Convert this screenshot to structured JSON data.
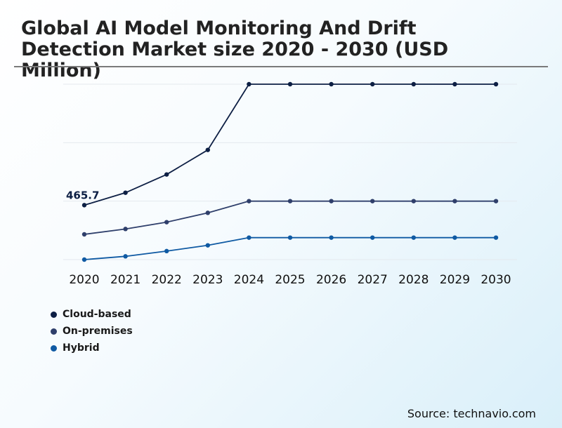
{
  "colors": {
    "cloud": "#0d1f44",
    "onprem": "#2f3f6b",
    "hybrid": "#0f5aa3"
  },
  "source": "Source: technavio.com",
  "chart_data": {
    "type": "line",
    "title": "Global AI Model Monitoring And Drift Detection Market size 2020 - 2030 (USD Million)",
    "xlabel": "",
    "ylabel": "",
    "categories": [
      "2020",
      "2021",
      "2022",
      "2023",
      "2024",
      "2025",
      "2026",
      "2027",
      "2028",
      "2029",
      "2030"
    ],
    "ylim": [
      0,
      1500
    ],
    "grid": true,
    "legend_position": "bottom-left",
    "series": [
      {
        "name": "Cloud-based",
        "color_key": "cloud",
        "values": [
          465.7,
          572,
          728,
          938,
          1500,
          1500,
          1500,
          1500,
          1500,
          1500,
          1500
        ]
      },
      {
        "name": "On-premises",
        "color_key": "onprem",
        "values": [
          216,
          262,
          320,
          400,
          500,
          500,
          500,
          500,
          500,
          500,
          500
        ]
      },
      {
        "name": "Hybrid",
        "color_key": "hybrid",
        "values": [
          0,
          28,
          73,
          122,
          188,
          188,
          188,
          188,
          188,
          188,
          188
        ]
      }
    ],
    "annotations": [
      {
        "series": "Cloud-based",
        "index": 0,
        "text": "465.7"
      }
    ]
  }
}
